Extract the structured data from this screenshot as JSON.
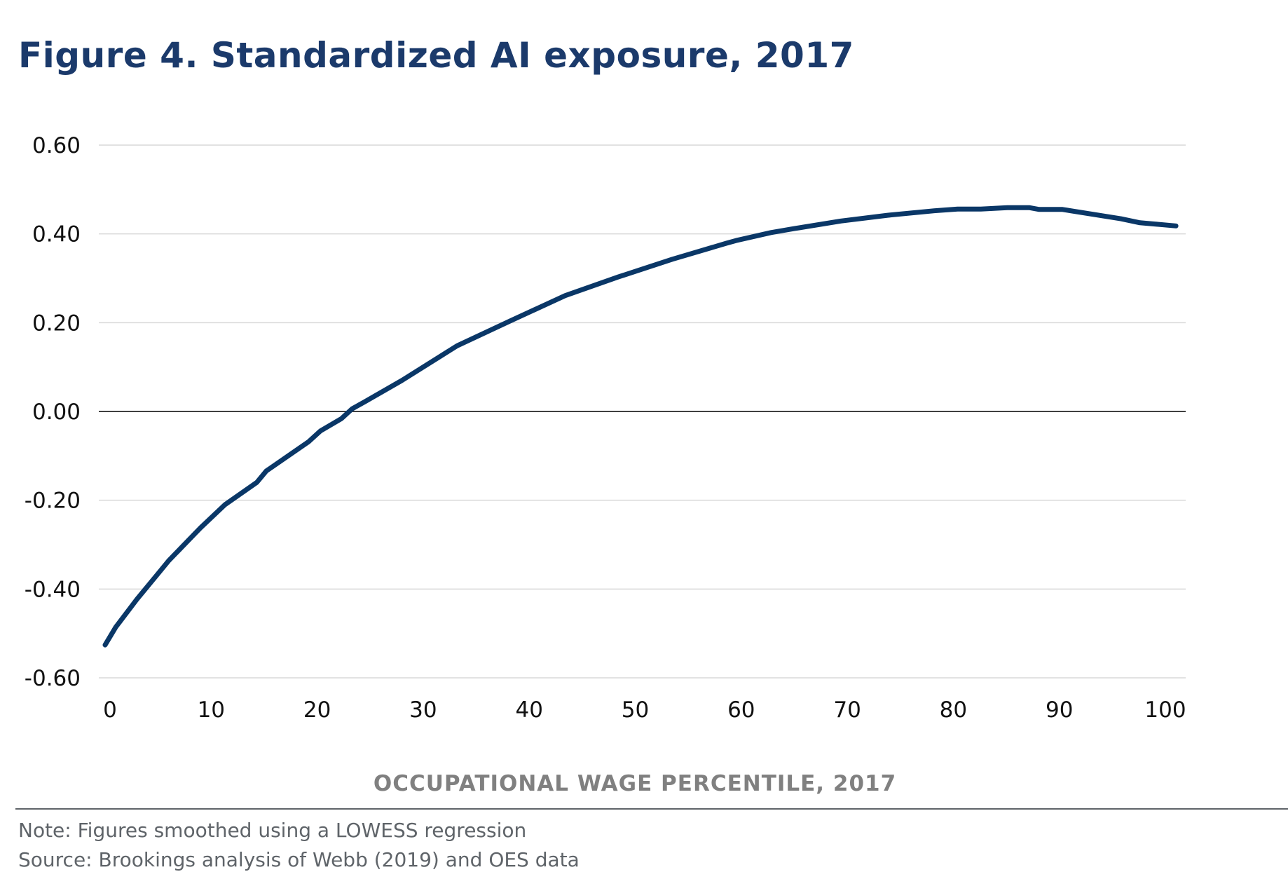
{
  "title": "Figure 4. Standardized AI exposure, 2017",
  "footer": {
    "note": "Note: Figures smoothed using a LOWESS regression",
    "source": "Source: Brookings analysis of Webb (2019) and OES data"
  },
  "colors": {
    "title": "#1b3a6b",
    "line": "#0a3767",
    "grid": "#d9d9d9",
    "zero_line": "#000000",
    "axis_title": "#808080",
    "footer_text": "#5f6469"
  },
  "chart_data": {
    "type": "line",
    "title": "Figure 4. Standardized AI exposure, 2017",
    "xlabel": "OCCUPATIONAL WAGE PERCENTILE, 2017",
    "ylabel": "",
    "xlim": [
      0,
      100
    ],
    "ylim": [
      -0.6,
      0.6
    ],
    "xticks": [
      0,
      10,
      20,
      30,
      40,
      50,
      60,
      70,
      80,
      90,
      100
    ],
    "xtick_labels": [
      "0",
      "10",
      "20",
      "30",
      "40",
      "50",
      "60",
      "70",
      "80",
      "90",
      "100"
    ],
    "yticks": [
      0.6,
      0.4,
      0.2,
      0.0,
      -0.2,
      -0.4,
      -0.6
    ],
    "ytick_labels": [
      "0.60",
      "0.40",
      "0.20",
      "0.00",
      "-0.20",
      "-0.40",
      "-0.60"
    ],
    "grid": true,
    "legend": "none",
    "series": [
      {
        "name": "Standardized AI exposure",
        "x": [
          0,
          1,
          3,
          5,
          6,
          9,
          11.3,
          14.3,
          15.2,
          19.2,
          20.3,
          22.3,
          23.3,
          24.5,
          28,
          33.2,
          38.3,
          43.4,
          48.4,
          53.5,
          58.6,
          59.5,
          62.8,
          65,
          69.4,
          73.8,
          78.2,
          80.4,
          82.6,
          85.1,
          87.2,
          88.1,
          90.3,
          95.8,
          97.6,
          99.1,
          101
        ],
        "y": [
          -0.526,
          -0.486,
          -0.423,
          -0.365,
          -0.336,
          -0.262,
          -0.21,
          -0.16,
          -0.134,
          -0.068,
          -0.044,
          -0.016,
          0.006,
          0.022,
          0.07,
          0.148,
          0.205,
          0.261,
          0.303,
          0.343,
          0.379,
          0.385,
          0.403,
          0.412,
          0.429,
          0.442,
          0.452,
          0.456,
          0.456,
          0.459,
          0.459,
          0.455,
          0.455,
          0.434,
          0.425,
          0.422,
          0.418
        ]
      }
    ]
  }
}
